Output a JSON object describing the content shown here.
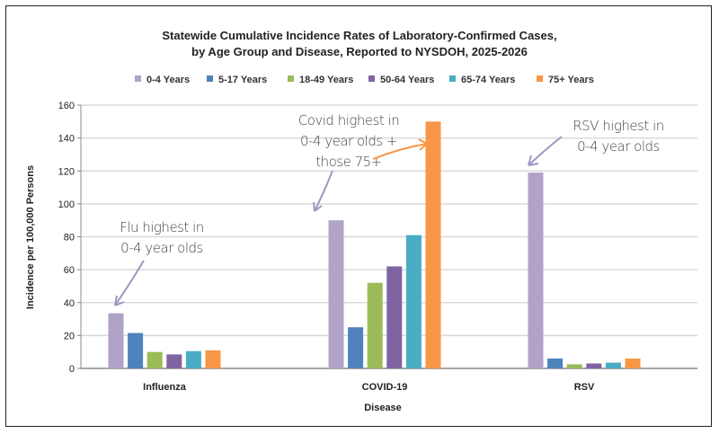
{
  "chart_data": {
    "type": "bar",
    "title": [
      "Statewide Cumulative Incidence Rates of Laboratory-Confirmed Cases,",
      "by Age Group and Disease, Reported to NYSDOH, 2025-2026"
    ],
    "xlabel": "Disease",
    "ylabel": "Incidence per 100,000 Persons",
    "ylim": [
      0,
      160
    ],
    "yticks": [
      0,
      20,
      40,
      60,
      80,
      100,
      120,
      140,
      160
    ],
    "grid": true,
    "legend": "top",
    "categories": [
      "Influenza",
      "COVID-19",
      "RSV"
    ],
    "series": [
      {
        "name": "0-4 Years",
        "color": "#b1a2c8",
        "values": [
          33.5,
          90,
          119
        ]
      },
      {
        "name": "5-17 Years",
        "color": "#4f81bd",
        "values": [
          21.5,
          25,
          6
        ]
      },
      {
        "name": "18-49 Years",
        "color": "#9bbb59",
        "values": [
          10,
          52,
          2.5
        ]
      },
      {
        "name": "50-64 Years",
        "color": "#8064a2",
        "values": [
          8.5,
          62,
          3
        ]
      },
      {
        "name": "65-74 Years",
        "color": "#4bacc6",
        "values": [
          10.5,
          81,
          3.5
        ]
      },
      {
        "name": "75+ Years",
        "color": "#f79646",
        "values": [
          11,
          150,
          6
        ]
      }
    ],
    "annotations": [
      {
        "lines": [
          "Flu highest in",
          "0-4 year olds"
        ]
      },
      {
        "lines": [
          "Covid highest in",
          "0-4 year olds +",
          "those 75+"
        ]
      },
      {
        "lines": [
          "RSV highest in",
          "0-4 year olds"
        ]
      }
    ]
  }
}
